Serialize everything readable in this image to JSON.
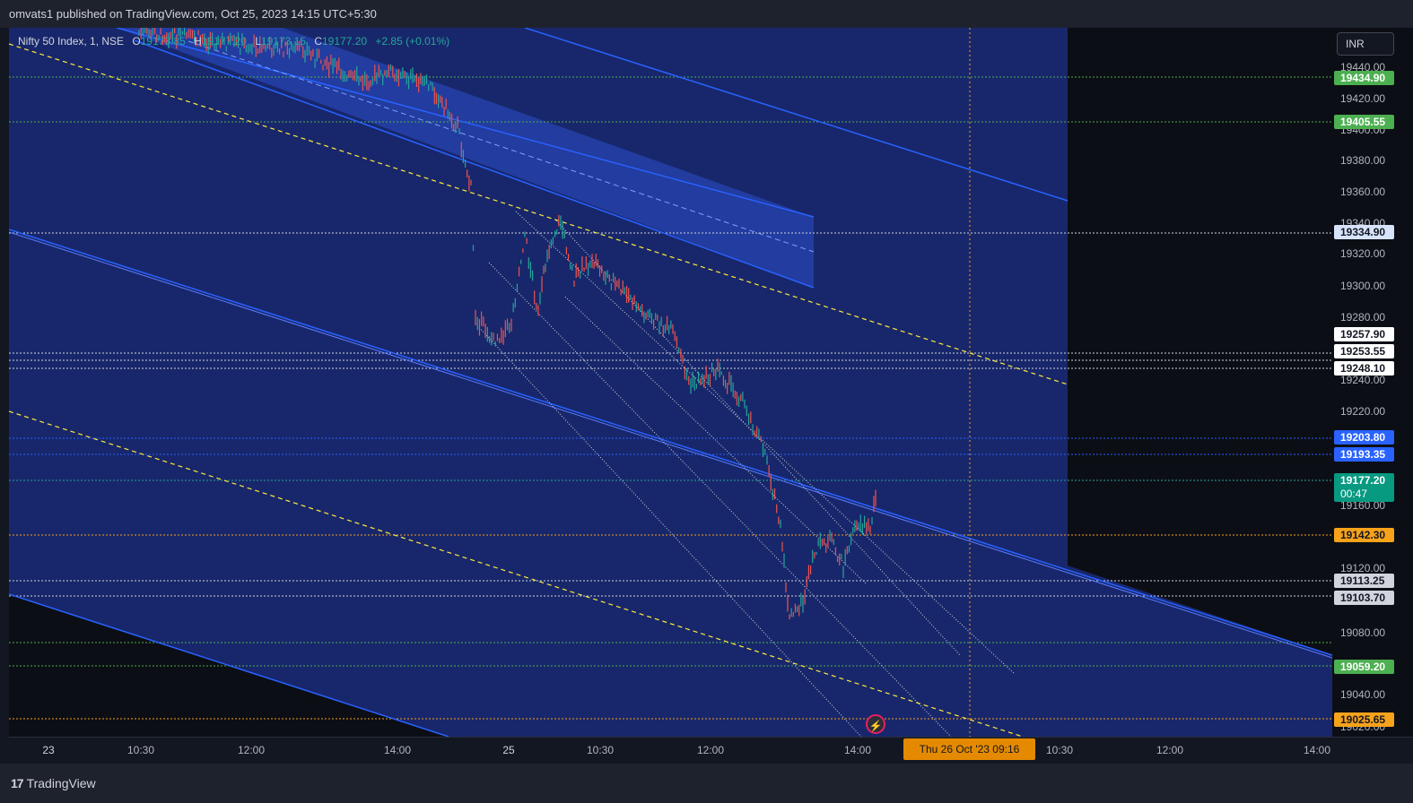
{
  "header": {
    "publisher": "omvats1 published on TradingView.com, Oct 25, 2023 14:15 UTC+5:30"
  },
  "legend": {
    "symbol": "Nifty 50 Index, 1, NSE",
    "o_key": "O",
    "o_val": "19173.85",
    "h_key": "H",
    "h_val": "19177.20",
    "l_key": "L",
    "l_val": "19173.15",
    "c_key": "C",
    "c_val": "19177.20",
    "change": "+2.85 (+0.01%)"
  },
  "currency_button": "INR",
  "y_ticks": [
    "19440.00",
    "19420.00",
    "19400.00",
    "19380.00",
    "19360.00",
    "19340.00",
    "19320.00",
    "19300.00",
    "19280.00",
    "19240.00",
    "19220.00",
    "19160.00",
    "19120.00",
    "19080.00",
    "19040.00",
    "19020.00"
  ],
  "price_labels": [
    {
      "value": "19434.90",
      "bg": "#4caf50",
      "fg": "#ffffff"
    },
    {
      "value": "19405.55",
      "bg": "#4caf50",
      "fg": "#ffffff"
    },
    {
      "value": "19334.90",
      "bg": "#d7e3fb",
      "fg": "#131722"
    },
    {
      "value": "19257.90",
      "bg": "#ffffff",
      "fg": "#131722"
    },
    {
      "value": "19253.55",
      "bg": "#ffffff",
      "fg": "#131722"
    },
    {
      "value": "19248.10",
      "bg": "#ffffff",
      "fg": "#131722"
    },
    {
      "value": "19203.80",
      "bg": "#2962ff",
      "fg": "#ffffff"
    },
    {
      "value": "19193.35",
      "bg": "#2962ff",
      "fg": "#ffffff"
    },
    {
      "value": "19177.20",
      "bg": "#089981",
      "fg": "#ffffff",
      "sub": "00:47"
    },
    {
      "value": "19142.30",
      "bg": "#f7a21b",
      "fg": "#131722"
    },
    {
      "value": "19113.25",
      "bg": "#d1d4dc",
      "fg": "#131722"
    },
    {
      "value": "19103.70",
      "bg": "#d1d4dc",
      "fg": "#131722"
    },
    {
      "value": "19059.20",
      "bg": "#4caf50",
      "fg": "#ffffff"
    },
    {
      "value": "19025.65",
      "bg": "#f7a21b",
      "fg": "#131722"
    }
  ],
  "x_ticks": [
    "23",
    "10:30",
    "12:00",
    "14:00",
    "25",
    "10:30",
    "12:00",
    "14:00",
    "10:30",
    "12:00",
    "14:00"
  ],
  "x_highlight": "Thu 26 Oct '23   09:16",
  "footer": {
    "brand": "TradingView",
    "brand_mark": "17"
  },
  "colors": {
    "up": "#26a69a",
    "down": "#ef5350",
    "channel": "#2962ff",
    "fib": "#ffeb3b"
  }
}
